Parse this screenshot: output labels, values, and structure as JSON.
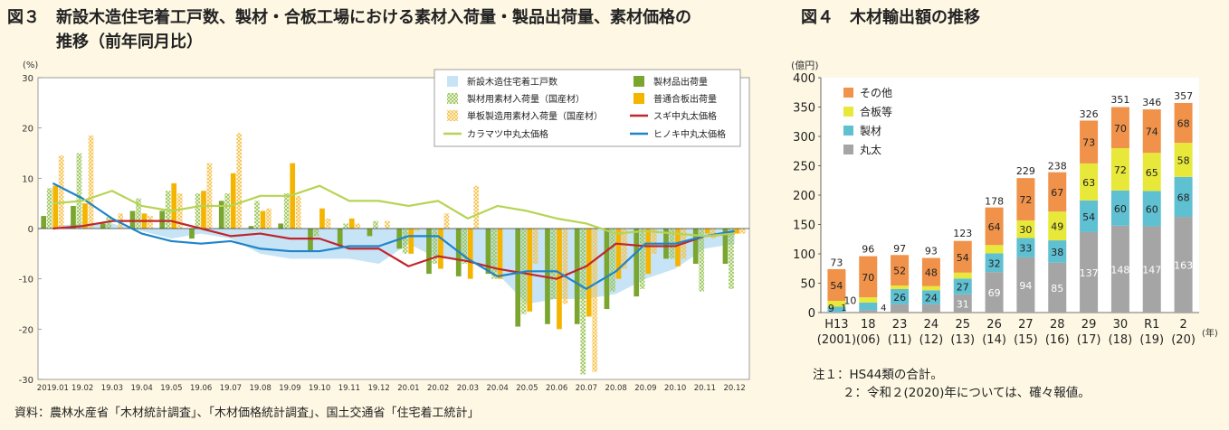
{
  "fig3": {
    "title_line1": "図３　新設木造住宅着工戸数、製材・合板工場における素材入荷量・製品出荷量、素材価格の",
    "title_line2": "　　　推移（前年同月比）",
    "unit": "(%)",
    "source": "資料：農林水産省「木材統計調査」、「木材価格統計調査」、国土交通省「住宅着工統計」"
  },
  "fig4": {
    "title": "図４　木材輸出額の推移",
    "unit": "(億円)",
    "xunit": "(年)",
    "note1": "注１：HS44類の合計。",
    "note2": "２：令和２(2020)年については、確々報値。"
  },
  "colors": {
    "housing": "#c6e4f5",
    "lumber_ship": "#7aa52e",
    "plywood_ship": "#f5b400",
    "sugi": "#c0262d",
    "hinoki": "#1f84c8",
    "karamatsu": "#b6d453",
    "maruta": "#a5a5a5",
    "seizai": "#5fc0d2",
    "gohan": "#e8e83a",
    "sonota": "#f0924a"
  },
  "chart_data": [
    {
      "type": "bar",
      "title": "新設木造住宅着工戸数、製材・合板工場における素材入荷量・製品出荷量、素材価格の推移（前年同月比）",
      "ylabel": "(%)",
      "ylim": [
        -30,
        30
      ],
      "yticks": [
        30,
        20,
        10,
        0,
        -10,
        -20,
        -30
      ],
      "categories": [
        "2019.01",
        "19.02",
        "19.03",
        "19.04",
        "19.05",
        "19.06",
        "19.07",
        "19.08",
        "19.09",
        "19.10",
        "19.11",
        "19.12",
        "20.01",
        "20.02",
        "20.03",
        "20.04",
        "20.05",
        "20.06",
        "20.07",
        "20.08",
        "20.09",
        "20.10",
        "20.11",
        "20.12"
      ],
      "legend_position": "top-right",
      "series": [
        {
          "name": "新設木造住宅着工戸数",
          "kind": "area",
          "values": [
            0.5,
            1,
            1,
            -0.5,
            -2,
            -1,
            -2,
            -5,
            -6,
            -6,
            -6,
            -7,
            -3,
            -6,
            -6,
            -9,
            -15,
            -14,
            -14,
            -13,
            -10,
            -8,
            -4,
            -3
          ]
        },
        {
          "name": "製材品出荷量",
          "kind": "bar",
          "values": [
            2.5,
            4.5,
            1,
            3.5,
            3.5,
            -2,
            5.5,
            0.5,
            1,
            -4.5,
            -3.5,
            -1.5,
            -4,
            -9,
            -9.5,
            -9,
            -19.5,
            -19,
            -19,
            -16,
            -13.5,
            -6,
            -7,
            -7
          ]
        },
        {
          "name": "製材用素材入荷量（国産材）",
          "kind": "hatched",
          "values": [
            8,
            15,
            2.5,
            6,
            7.5,
            7,
            7,
            5.5,
            7,
            -1.5,
            1,
            1.5,
            -5,
            -7,
            -7,
            -10,
            -17,
            -14,
            -29,
            -12.5,
            -12,
            -6,
            -12.5,
            -12
          ]
        },
        {
          "name": "普通合板出荷量",
          "kind": "bar",
          "values": [
            8.5,
            5,
            0,
            3,
            9,
            7.5,
            11,
            3.5,
            13,
            4,
            2,
            0,
            -5,
            -8,
            -10,
            -10,
            -16.5,
            -20,
            -17.5,
            -10,
            -9,
            -7.5,
            -1,
            -1
          ]
        },
        {
          "name": "単板製造用素材入荷量（国産材）",
          "kind": "hatched",
          "values": [
            14.5,
            18.5,
            3,
            2.5,
            7,
            13,
            19,
            4,
            6.5,
            2,
            1,
            1.5,
            -0.5,
            3,
            8.5,
            0,
            -7,
            -15,
            -28.5,
            -8,
            -5,
            -6,
            -2,
            -1
          ]
        },
        {
          "name": "スギ中丸太価格",
          "kind": "line",
          "values": [
            0,
            0.5,
            1.5,
            1.5,
            1.5,
            0,
            -1.5,
            -1,
            -2,
            -2,
            -4,
            -4,
            -7.5,
            -5.5,
            -6.5,
            -8,
            -9,
            -10,
            -7.5,
            -3,
            -3.5,
            -3.5,
            -1.5,
            -1
          ]
        },
        {
          "name": "ヒノキ中丸太価格",
          "kind": "line",
          "values": [
            9,
            6,
            2,
            -1,
            -2.5,
            -3,
            -2.5,
            -4,
            -4.5,
            -4.5,
            -3.5,
            -3.5,
            -1.5,
            -1.5,
            -6,
            -9.5,
            -8.5,
            -8.5,
            -12,
            -8.5,
            -3,
            -3,
            -1.5,
            -0.5
          ]
        },
        {
          "name": "カラマツ中丸太価格",
          "kind": "line",
          "values": [
            5,
            5.5,
            7.5,
            4.5,
            3.5,
            4.5,
            4.5,
            6.5,
            6.5,
            8.5,
            5.5,
            5.5,
            4.5,
            5.5,
            2,
            4.5,
            3.5,
            2,
            1,
            -1,
            -0.5,
            -1,
            -1.5,
            -1
          ]
        }
      ]
    },
    {
      "type": "bar",
      "title": "木材輸出額の推移",
      "ylabel": "(億円)",
      "xlabel": "(年)",
      "ylim": [
        0,
        400
      ],
      "yticks": [
        0,
        50,
        100,
        150,
        200,
        250,
        300,
        350,
        400
      ],
      "categories": [
        "H13",
        "18",
        "23",
        "24",
        "25",
        "26",
        "27",
        "28",
        "29",
        "30",
        "R1",
        "2"
      ],
      "categories_sub": [
        "(2001)",
        "(06)",
        "(11)",
        "(12)",
        "(13)",
        "(14)",
        "(15)",
        "(16)",
        "(17)",
        "(18)",
        "(19)",
        "(20)"
      ],
      "stacked": true,
      "legend_position": "top-left",
      "totals": [
        73,
        96,
        97,
        93,
        123,
        178,
        229,
        238,
        326,
        351,
        346,
        357
      ],
      "series": [
        {
          "name": "丸太",
          "values": [
            1,
            4,
            14,
            14,
            31,
            69,
            94,
            85,
            137,
            148,
            147,
            163
          ]
        },
        {
          "name": "製材",
          "values": [
            9,
            13,
            26,
            24,
            27,
            32,
            33,
            38,
            54,
            60,
            60,
            68
          ]
        },
        {
          "name": "合板等",
          "values": [
            10,
            9,
            6,
            7,
            10,
            14,
            30,
            49,
            63,
            72,
            65,
            58
          ]
        },
        {
          "name": "その他",
          "values": [
            54,
            70,
            52,
            48,
            54,
            64,
            72,
            67,
            73,
            70,
            74,
            68
          ]
        }
      ],
      "labels_shown": [
        [
          "1",
          "9",
          "10",
          "54"
        ],
        [
          "4",
          "13",
          "9",
          "70"
        ],
        [
          "14",
          "26",
          "6",
          "52"
        ],
        [
          "14",
          "24",
          "7",
          "48"
        ],
        [
          "31",
          "27",
          "10",
          "54"
        ],
        [
          "69",
          "32",
          "14",
          "64"
        ],
        [
          "94",
          "33",
          "30",
          "72"
        ],
        [
          "85",
          "38",
          "49",
          "67"
        ],
        [
          "137",
          "54",
          "63",
          "73"
        ],
        [
          "148",
          "60",
          "72",
          "70"
        ],
        [
          "147",
          "60",
          "65",
          "74"
        ],
        [
          "163",
          "68",
          "58",
          "68"
        ]
      ]
    }
  ]
}
